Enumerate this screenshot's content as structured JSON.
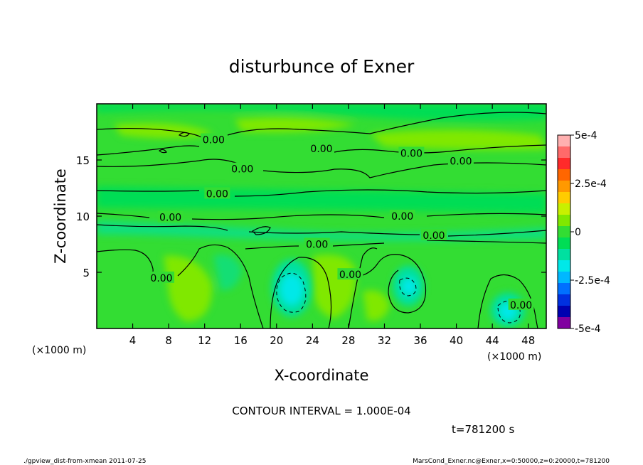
{
  "chart_data": {
    "type": "heatmap",
    "title": "disturbunce of Exner",
    "xlabel": "X-coordinate",
    "ylabel": "Z-coordinate",
    "x_unit_left": "(×1000 m)",
    "x_unit_right": "(×1000 m)",
    "xlim": [
      0,
      50
    ],
    "ylim": [
      0,
      20
    ],
    "x_ticks": [
      4,
      8,
      12,
      16,
      20,
      24,
      28,
      32,
      36,
      40,
      44,
      48
    ],
    "y_ticks": [
      5,
      10,
      15
    ],
    "contour_label": "0.00",
    "contour_labels": [
      {
        "x": 13.0,
        "y": 16.8
      },
      {
        "x": 25.0,
        "y": 16.0
      },
      {
        "x": 35.0,
        "y": 15.6
      },
      {
        "x": 40.5,
        "y": 14.9
      },
      {
        "x": 16.2,
        "y": 14.2
      },
      {
        "x": 13.4,
        "y": 12.0
      },
      {
        "x": 8.2,
        "y": 9.9
      },
      {
        "x": 34.0,
        "y": 10.0
      },
      {
        "x": 37.5,
        "y": 8.3
      },
      {
        "x": 24.5,
        "y": 7.5
      },
      {
        "x": 28.2,
        "y": 4.8
      },
      {
        "x": 7.2,
        "y": 4.5
      },
      {
        "x": 47.2,
        "y": 2.1
      }
    ],
    "colorbar": {
      "range": [
        -0.0005,
        0.0005
      ],
      "tick_labels": [
        "5e-4",
        "2.5e-4",
        "0",
        "-2.5e-4",
        "-5e-4"
      ],
      "colors": [
        "#ffb0b0",
        "#ff6a6a",
        "#ff2a2a",
        "#ff6600",
        "#ff9900",
        "#ffcc00",
        "#c8f000",
        "#80e800",
        "#33dd33",
        "#00dd55",
        "#00e0a0",
        "#00e8e8",
        "#00b8ff",
        "#0070ff",
        "#0030e0",
        "#0000b0",
        "#8000a0"
      ]
    },
    "minima": [
      {
        "x": 22.0,
        "z": 3.4,
        "value": -0.00022
      },
      {
        "x": 34.0,
        "z": 3.6,
        "value": -0.00016
      },
      {
        "x": 46.0,
        "z": 1.6,
        "value": -0.00015
      }
    ],
    "contour_interval_text": "CONTOUR INTERVAL = 1.000E-04",
    "time_text": "t=781200 s"
  },
  "footer": {
    "left": "./gpview_dist-from-xmean 2011-07-25",
    "right": "MarsCond_Exner.nc@Exner,x=0:50000,z=0:20000,t=781200"
  }
}
